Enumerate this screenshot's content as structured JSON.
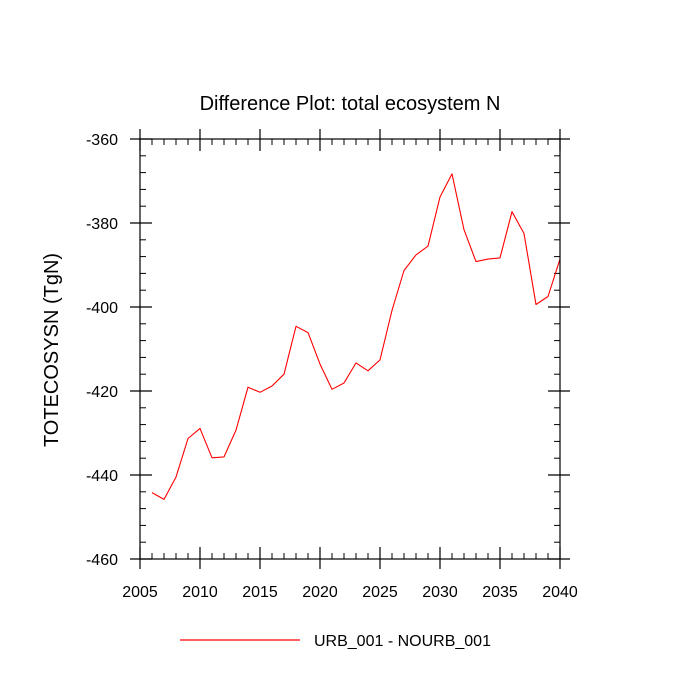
{
  "chart_data": {
    "type": "line",
    "title": "Difference Plot: total ecosystem N",
    "xlabel": "",
    "ylabel": "TOTECOSYSN  (TgN)",
    "xlim": [
      2005,
      2040
    ],
    "ylim": [
      -460,
      -360
    ],
    "xticks": [
      2005,
      2010,
      2015,
      2020,
      2025,
      2030,
      2035,
      2040
    ],
    "yticks": [
      -460,
      -440,
      -420,
      -400,
      -380,
      -360
    ],
    "xtick_labels": [
      "2005",
      "2010",
      "2015",
      "2020",
      "2025",
      "2030",
      "2035",
      "2040"
    ],
    "ytick_labels": [
      "-460",
      "-440",
      "-420",
      "-400",
      "-380",
      "-360"
    ],
    "grid": false,
    "legend_position": "bottom-center",
    "series": [
      {
        "name": "URB_001 - NOURB_001",
        "color": "#ff0000",
        "x": [
          2006,
          2007,
          2008,
          2009,
          2010,
          2011,
          2012,
          2013,
          2014,
          2015,
          2016,
          2017,
          2018,
          2019,
          2020,
          2021,
          2022,
          2023,
          2024,
          2025,
          2026,
          2027,
          2028,
          2029,
          2030,
          2031,
          2032,
          2033,
          2034,
          2035,
          2036,
          2037,
          2038,
          2039,
          2040
        ],
        "y": [
          -444.2,
          -445.8,
          -440.5,
          -431.3,
          -428.9,
          -435.9,
          -435.7,
          -429.3,
          -419.1,
          -420.3,
          -418.8,
          -416.0,
          -404.6,
          -406.1,
          -413.6,
          -419.6,
          -418.1,
          -413.3,
          -415.2,
          -412.6,
          -400.8,
          -391.3,
          -387.6,
          -385.5,
          -373.8,
          -368.3,
          -381.6,
          -389.2,
          -388.6,
          -388.3,
          -377.3,
          -382.5,
          -399.4,
          -397.5,
          -388.6
        ]
      }
    ]
  }
}
